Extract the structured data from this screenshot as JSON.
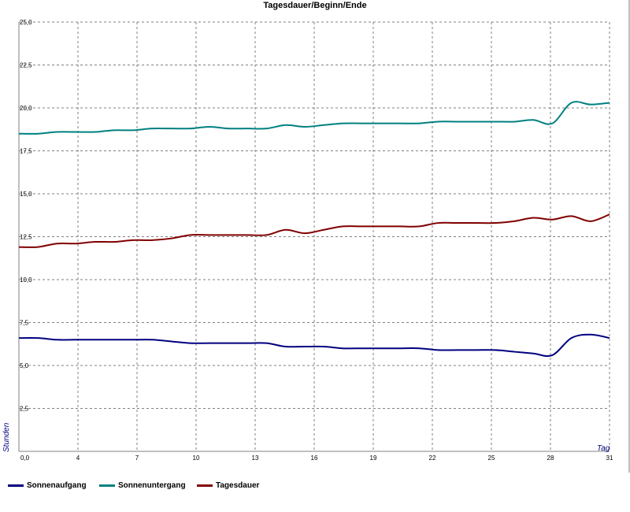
{
  "chart_data": {
    "type": "line",
    "title": "Tagesdauer/Beginn/Ende",
    "xlabel": "Tag",
    "ylabel": "Stunden",
    "xlim": [
      0,
      31
    ],
    "ylim": [
      0,
      25
    ],
    "x_ticks": [
      "0,0",
      "4",
      "7",
      "10",
      "13",
      "16",
      "19",
      "22",
      "25",
      "28",
      "31"
    ],
    "x_tick_values": [
      0,
      3.1,
      6.2,
      9.3,
      12.4,
      15.5,
      18.6,
      21.7,
      24.8,
      27.9,
      31
    ],
    "y_ticks": [
      "2,5",
      "5,0",
      "7,5",
      "10,0",
      "12,5",
      "15,0",
      "17,5",
      "20,0",
      "22,5",
      "25,0"
    ],
    "y_tick_values": [
      2.5,
      5,
      7.5,
      10,
      12.5,
      15,
      17.5,
      20,
      22.5,
      25
    ],
    "grid": true,
    "legend_position": "bottom-left",
    "x": [
      0,
      1,
      2,
      3,
      4,
      5,
      6,
      7,
      8,
      9,
      10,
      11,
      12,
      13,
      14,
      15,
      16,
      17,
      18,
      19,
      20,
      21,
      22,
      23,
      24,
      25,
      26,
      27,
      28,
      29,
      30,
      31
    ],
    "series": [
      {
        "name": "Sonnenaufgang",
        "color": "#000080",
        "values": [
          6.6,
          6.6,
          6.5,
          6.5,
          6.5,
          6.5,
          6.5,
          6.5,
          6.4,
          6.3,
          6.3,
          6.3,
          6.3,
          6.3,
          6.1,
          6.1,
          6.1,
          6.0,
          6.0,
          6.0,
          6.0,
          6.0,
          5.9,
          5.9,
          5.9,
          5.9,
          5.8,
          5.7,
          5.6,
          6.6,
          6.8,
          6.6
        ]
      },
      {
        "name": "Sonnenuntergang",
        "color": "#008080",
        "values": [
          18.5,
          18.5,
          18.6,
          18.6,
          18.6,
          18.7,
          18.7,
          18.8,
          18.8,
          18.8,
          18.9,
          18.8,
          18.8,
          18.8,
          19.0,
          18.9,
          19.0,
          19.1,
          19.1,
          19.1,
          19.1,
          19.1,
          19.2,
          19.2,
          19.2,
          19.2,
          19.2,
          19.3,
          19.1,
          20.3,
          20.2,
          20.3
        ]
      },
      {
        "name": "Tagesdauer",
        "color": "#800000",
        "values": [
          11.9,
          11.9,
          12.1,
          12.1,
          12.2,
          12.2,
          12.3,
          12.3,
          12.4,
          12.6,
          12.6,
          12.6,
          12.6,
          12.6,
          12.9,
          12.7,
          12.9,
          13.1,
          13.1,
          13.1,
          13.1,
          13.1,
          13.3,
          13.3,
          13.3,
          13.3,
          13.4,
          13.6,
          13.5,
          13.7,
          13.4,
          13.8
        ]
      }
    ]
  }
}
